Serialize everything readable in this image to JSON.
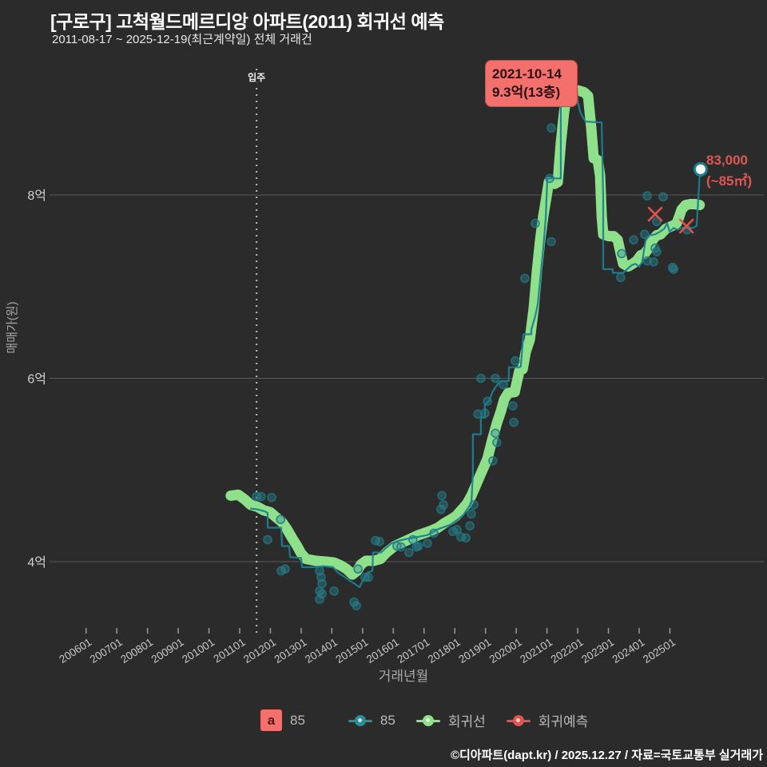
{
  "title": "[구로구] 고척월드메르디앙 아파트(2011) 회귀선 예측",
  "subtitle": "2011-08-17 ~ 2025-12-19(최근계약일) 전체 거래건",
  "footer": "©디아파트(dapt.kr) / 2025.12.27 / 자료=국토교통부 실거래가",
  "annotation": {
    "date": "2021-10-14",
    "price": "9.3억(13층)"
  },
  "prediction_label": {
    "value": "83,000",
    "area": "(~85㎡)"
  },
  "legend": {
    "items": [
      {
        "swatch": "a",
        "label": "85"
      },
      {
        "label": "85"
      },
      {
        "label": "회귀선"
      },
      {
        "label": "회귀예측"
      }
    ]
  },
  "colors": {
    "background": "#2b2b2b",
    "grid": "#5a5a5a",
    "regression_green": "#8fe08b",
    "actual_teal": "#1b808e",
    "scatter_teal": "#2a8c94",
    "prediction_red": "#e0514d",
    "annotation_bg": "#f4706c",
    "prediction_text": "#de5753",
    "axis_text": "#c8c8c8"
  },
  "chart_data": {
    "type": "line",
    "title": "[구로구] 고척월드메르디앙 아파트(2011) 회귀선 예측",
    "xlabel": "거래년월",
    "ylabel": "매매가(원)",
    "x_unit": "decimal year",
    "y_unit": "억원",
    "xlim": [
      2004.9,
      2026.6
    ],
    "ylim": [
      2.9,
      9.9
    ],
    "grid": "horizontal-only",
    "y_ticks": [
      {
        "v": 8,
        "label": "8억"
      },
      {
        "v": 6,
        "label": "6억"
      },
      {
        "v": 4,
        "label": "4억"
      }
    ],
    "x_ticks": [
      {
        "t": 2006,
        "label": "200601"
      },
      {
        "t": 2007,
        "label": "200701"
      },
      {
        "t": 2008,
        "label": "200801"
      },
      {
        "t": 2009,
        "label": "200901"
      },
      {
        "t": 2010,
        "label": "201001"
      },
      {
        "t": 2011,
        "label": "201101"
      },
      {
        "t": 2012,
        "label": "201201"
      },
      {
        "t": 2013,
        "label": "201301"
      },
      {
        "t": 2014,
        "label": "201401"
      },
      {
        "t": 2015,
        "label": "201501"
      },
      {
        "t": 2016,
        "label": "201601"
      },
      {
        "t": 2017,
        "label": "201701"
      },
      {
        "t": 2018,
        "label": "201801"
      },
      {
        "t": 2019,
        "label": "201901"
      },
      {
        "t": 2020,
        "label": "202001"
      },
      {
        "t": 2021,
        "label": "202101"
      },
      {
        "t": 2022,
        "label": "202201"
      },
      {
        "t": 2023,
        "label": "202301"
      },
      {
        "t": 2024,
        "label": "202401"
      },
      {
        "t": 2025,
        "label": "202501"
      }
    ],
    "move_in": {
      "t": 2011.55,
      "label": "입주"
    },
    "max_point": {
      "t": 2021.82,
      "v": 9.27,
      "date": "2021-10-14",
      "label": "9.3억(13층)"
    },
    "forecast_point": {
      "t": 2026.0,
      "v": 8.28,
      "label": "83,000",
      "area": "(~85㎡)"
    },
    "series": [
      {
        "name": "회귀선",
        "type": "line",
        "role": "regression",
        "values": [
          [
            2010.71,
            4.72
          ],
          [
            2010.95,
            4.73
          ],
          [
            2011.16,
            4.68
          ],
          [
            2011.36,
            4.62
          ],
          [
            2011.57,
            4.6
          ],
          [
            2011.78,
            4.56
          ],
          [
            2011.99,
            4.54
          ],
          [
            2012.2,
            4.48
          ],
          [
            2012.38,
            4.43
          ],
          [
            2012.53,
            4.36
          ],
          [
            2012.72,
            4.25
          ],
          [
            2012.87,
            4.17
          ],
          [
            2013.0,
            4.09
          ],
          [
            2013.16,
            4.03
          ],
          [
            2013.47,
            4.01
          ],
          [
            2013.81,
            4.0
          ],
          [
            2014.07,
            3.99
          ],
          [
            2014.28,
            3.96
          ],
          [
            2014.48,
            3.92
          ],
          [
            2014.67,
            3.86
          ],
          [
            2014.82,
            3.9
          ],
          [
            2014.95,
            3.97
          ],
          [
            2015.11,
            4.01
          ],
          [
            2015.37,
            4.01
          ],
          [
            2015.58,
            4.03
          ],
          [
            2015.78,
            4.1
          ],
          [
            2016.04,
            4.17
          ],
          [
            2016.3,
            4.21
          ],
          [
            2016.56,
            4.25
          ],
          [
            2016.82,
            4.29
          ],
          [
            2017.08,
            4.32
          ],
          [
            2017.24,
            4.34
          ],
          [
            2017.45,
            4.37
          ],
          [
            2017.66,
            4.42
          ],
          [
            2017.87,
            4.46
          ],
          [
            2018.05,
            4.5
          ],
          [
            2018.23,
            4.57
          ],
          [
            2018.39,
            4.63
          ],
          [
            2018.54,
            4.72
          ],
          [
            2018.85,
            4.96
          ],
          [
            2019.06,
            5.12
          ],
          [
            2019.22,
            5.33
          ],
          [
            2019.37,
            5.51
          ],
          [
            2019.5,
            5.64
          ],
          [
            2019.61,
            5.77
          ],
          [
            2019.74,
            5.84
          ],
          [
            2019.95,
            5.85
          ],
          [
            2020.1,
            6.08
          ],
          [
            2020.21,
            6.1
          ],
          [
            2020.31,
            6.29
          ],
          [
            2020.44,
            6.42
          ],
          [
            2020.57,
            6.77
          ],
          [
            2020.67,
            7.16
          ],
          [
            2020.78,
            7.51
          ],
          [
            2020.88,
            7.77
          ],
          [
            2020.99,
            7.99
          ],
          [
            2021.06,
            8.14
          ],
          [
            2021.25,
            8.12
          ],
          [
            2021.35,
            8.14
          ],
          [
            2021.45,
            8.56
          ],
          [
            2021.56,
            8.91
          ],
          [
            2021.66,
            9.1
          ],
          [
            2021.82,
            9.13
          ],
          [
            2022.02,
            9.14
          ],
          [
            2022.21,
            9.12
          ],
          [
            2022.34,
            9.08
          ],
          [
            2022.44,
            8.73
          ],
          [
            2022.52,
            8.4
          ],
          [
            2022.65,
            8.38
          ],
          [
            2022.73,
            8.21
          ],
          [
            2022.78,
            7.77
          ],
          [
            2022.83,
            7.57
          ],
          [
            2023.01,
            7.55
          ],
          [
            2023.17,
            7.55
          ],
          [
            2023.3,
            7.51
          ],
          [
            2023.4,
            7.36
          ],
          [
            2023.48,
            7.25
          ],
          [
            2023.64,
            7.22
          ],
          [
            2023.79,
            7.25
          ],
          [
            2023.92,
            7.28
          ],
          [
            2024.05,
            7.34
          ],
          [
            2024.18,
            7.36
          ],
          [
            2024.31,
            7.42
          ],
          [
            2024.44,
            7.51
          ],
          [
            2024.57,
            7.56
          ],
          [
            2024.7,
            7.57
          ],
          [
            2024.86,
            7.63
          ],
          [
            2024.99,
            7.65
          ],
          [
            2025.12,
            7.67
          ],
          [
            2025.22,
            7.69
          ],
          [
            2025.3,
            7.76
          ],
          [
            2025.38,
            7.84
          ],
          [
            2025.51,
            7.89
          ],
          [
            2025.66,
            7.9
          ],
          [
            2025.82,
            7.9
          ],
          [
            2025.97,
            7.89
          ]
        ]
      },
      {
        "name": "85",
        "type": "line",
        "role": "actual",
        "values": [
          [
            2011.34,
            4.58
          ],
          [
            2011.57,
            4.57
          ],
          [
            2011.81,
            4.55
          ],
          [
            2011.91,
            4.53
          ],
          [
            2011.91,
            4.37
          ],
          [
            2012.35,
            4.37
          ],
          [
            2012.38,
            4.17
          ],
          [
            2012.61,
            4.17
          ],
          [
            2012.64,
            4.05
          ],
          [
            2013.0,
            4.04
          ],
          [
            2013.03,
            3.94
          ],
          [
            2013.42,
            3.94
          ],
          [
            2013.73,
            3.95
          ],
          [
            2014.04,
            3.94
          ],
          [
            2014.2,
            3.88
          ],
          [
            2014.43,
            3.83
          ],
          [
            2014.59,
            3.79
          ],
          [
            2014.74,
            3.76
          ],
          [
            2014.9,
            3.72
          ],
          [
            2015.03,
            3.81
          ],
          [
            2015.16,
            3.88
          ],
          [
            2015.32,
            3.9
          ],
          [
            2015.34,
            4.1
          ],
          [
            2015.6,
            4.1
          ],
          [
            2015.76,
            4.15
          ],
          [
            2015.94,
            4.2
          ],
          [
            2016.2,
            4.23
          ],
          [
            2016.46,
            4.25
          ],
          [
            2016.8,
            4.27
          ],
          [
            2017.11,
            4.29
          ],
          [
            2017.42,
            4.35
          ],
          [
            2017.84,
            4.4
          ],
          [
            2018.1,
            4.46
          ],
          [
            2018.28,
            4.51
          ],
          [
            2018.54,
            4.64
          ],
          [
            2018.59,
            4.96
          ],
          [
            2018.59,
            5.39
          ],
          [
            2018.85,
            5.39
          ],
          [
            2018.85,
            5.57
          ],
          [
            2018.98,
            5.57
          ],
          [
            2018.98,
            5.71
          ],
          [
            2019.11,
            5.75
          ],
          [
            2019.24,
            5.86
          ],
          [
            2019.4,
            5.94
          ],
          [
            2019.5,
            5.97
          ],
          [
            2019.76,
            5.97
          ],
          [
            2019.76,
            6.12
          ],
          [
            2020.1,
            6.12
          ],
          [
            2020.15,
            6.13
          ],
          [
            2020.23,
            6.48
          ],
          [
            2020.49,
            6.48
          ],
          [
            2020.49,
            6.53
          ],
          [
            2020.62,
            6.68
          ],
          [
            2020.7,
            6.81
          ],
          [
            2020.78,
            7.08
          ],
          [
            2020.88,
            7.42
          ],
          [
            2020.96,
            7.75
          ],
          [
            2021.01,
            8.18
          ],
          [
            2021.45,
            8.18
          ],
          [
            2021.45,
            9.02
          ],
          [
            2021.56,
            9.15
          ],
          [
            2021.66,
            9.21
          ],
          [
            2021.82,
            9.27
          ],
          [
            2021.9,
            9.25
          ],
          [
            2021.97,
            9.19
          ],
          [
            2022.0,
            9.02
          ],
          [
            2022.08,
            8.91
          ],
          [
            2022.18,
            8.84
          ],
          [
            2022.26,
            8.8
          ],
          [
            2022.78,
            8.79
          ],
          [
            2022.83,
            7.95
          ],
          [
            2022.83,
            7.19
          ],
          [
            2023.14,
            7.19
          ],
          [
            2023.14,
            7.15
          ],
          [
            2023.48,
            7.15
          ],
          [
            2023.74,
            7.23
          ],
          [
            2023.87,
            7.25
          ],
          [
            2024.0,
            7.22
          ],
          [
            2024.1,
            7.27
          ],
          [
            2024.21,
            7.51
          ],
          [
            2024.34,
            7.56
          ],
          [
            2024.52,
            7.57
          ],
          [
            2024.68,
            7.6
          ],
          [
            2024.81,
            7.63
          ],
          [
            2024.91,
            7.69
          ],
          [
            2024.99,
            7.6
          ],
          [
            2025.12,
            7.64
          ],
          [
            2025.25,
            7.62
          ],
          [
            2025.38,
            7.64
          ],
          [
            2025.56,
            7.64
          ],
          [
            2025.74,
            7.64
          ],
          [
            2025.87,
            7.66
          ],
          [
            2025.98,
            8.26
          ]
        ]
      },
      {
        "name": "85-transactions",
        "type": "scatter",
        "role": "transactions",
        "values": [
          [
            2011.55,
            4.71
          ],
          [
            2011.7,
            4.71
          ],
          [
            2012.04,
            4.7
          ],
          [
            2012.33,
            4.46
          ],
          [
            2011.91,
            4.24
          ],
          [
            2012.35,
            3.9
          ],
          [
            2012.48,
            3.92
          ],
          [
            2013.6,
            3.9
          ],
          [
            2013.65,
            3.83
          ],
          [
            2013.68,
            3.76
          ],
          [
            2013.6,
            3.68
          ],
          [
            2013.68,
            3.65
          ],
          [
            2013.6,
            3.59
          ],
          [
            2014.07,
            3.68
          ],
          [
            2014.72,
            3.56
          ],
          [
            2014.8,
            3.52
          ],
          [
            2014.85,
            3.92
          ],
          [
            2015.08,
            3.83
          ],
          [
            2015.19,
            3.83
          ],
          [
            2015.42,
            4.23
          ],
          [
            2015.55,
            4.22
          ],
          [
            2016.12,
            4.17
          ],
          [
            2016.25,
            4.16
          ],
          [
            2016.51,
            4.1
          ],
          [
            2016.64,
            4.24
          ],
          [
            2016.75,
            4.16
          ],
          [
            2016.82,
            4.17
          ],
          [
            2017.11,
            4.2
          ],
          [
            2017.32,
            4.31
          ],
          [
            2017.55,
            4.57
          ],
          [
            2017.63,
            4.62
          ],
          [
            2017.58,
            4.72
          ],
          [
            2017.94,
            4.33
          ],
          [
            2018.07,
            4.35
          ],
          [
            2018.2,
            4.27
          ],
          [
            2018.36,
            4.26
          ],
          [
            2018.49,
            4.39
          ],
          [
            2018.54,
            4.52
          ],
          [
            2018.62,
            4.62
          ],
          [
            2018.75,
            5.61
          ],
          [
            2018.85,
            6.0
          ],
          [
            2018.98,
            5.62
          ],
          [
            2019.06,
            5.75
          ],
          [
            2019.24,
            5.1
          ],
          [
            2019.32,
            6.0
          ],
          [
            2019.32,
            5.4
          ],
          [
            2019.37,
            5.3
          ],
          [
            2019.58,
            5.93
          ],
          [
            2019.89,
            5.7
          ],
          [
            2019.92,
            5.52
          ],
          [
            2019.97,
            6.19
          ],
          [
            2020.28,
            7.09
          ],
          [
            2020.62,
            7.69
          ],
          [
            2021.09,
            8.18
          ],
          [
            2021.14,
            8.73
          ],
          [
            2021.14,
            7.49
          ],
          [
            2021.82,
            9.27
          ],
          [
            2023.4,
            7.1
          ],
          [
            2023.43,
            7.36
          ],
          [
            2023.82,
            7.51
          ],
          [
            2024.18,
            7.57
          ],
          [
            2024.26,
            7.99
          ],
          [
            2024.26,
            7.28
          ],
          [
            2024.47,
            7.27
          ],
          [
            2024.52,
            7.42
          ],
          [
            2024.57,
            7.71
          ],
          [
            2024.57,
            7.38
          ],
          [
            2024.78,
            7.98
          ],
          [
            2025.09,
            7.21
          ],
          [
            2025.12,
            7.19
          ],
          [
            2025.56,
            7.62
          ]
        ]
      },
      {
        "name": "회귀예측",
        "type": "scatter-x",
        "role": "prediction",
        "values": [
          [
            2024.52,
            7.79
          ],
          [
            2025.54,
            7.66
          ]
        ]
      }
    ]
  }
}
